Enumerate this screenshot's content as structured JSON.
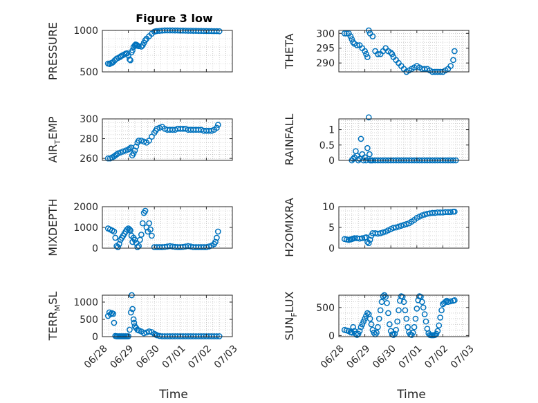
{
  "figure_title": "Figure 3 low",
  "chart_data": [
    {
      "type": "scatter",
      "ylabel": "PRESSURE",
      "ylim": [
        500,
        1000
      ],
      "yticks": [
        500,
        1000
      ],
      "xlim": [
        0,
        5
      ],
      "x": [
        0.22,
        0.28,
        0.33,
        0.38,
        0.42,
        0.48,
        0.55,
        0.62,
        0.68,
        0.72,
        0.78,
        0.84,
        0.9,
        0.95,
        1.0,
        1.05,
        1.08,
        1.12,
        1.16,
        1.2,
        1.25,
        1.28,
        1.32,
        1.35,
        1.4,
        1.5,
        1.55,
        1.6,
        1.65,
        1.7,
        1.8,
        1.9,
        2.0,
        2.05,
        2.1,
        2.2,
        2.3,
        2.4,
        2.5,
        2.6,
        2.7,
        2.8,
        2.9,
        3.0,
        3.1,
        3.2,
        3.3,
        3.4,
        3.5,
        3.6,
        3.7,
        3.8,
        3.9,
        4.0,
        4.1,
        4.2,
        4.3,
        4.4,
        4.5
      ],
      "y": [
        600,
        595,
        605,
        610,
        620,
        640,
        660,
        670,
        680,
        690,
        700,
        710,
        720,
        725,
        700,
        650,
        640,
        735,
        760,
        800,
        820,
        830,
        825,
        815,
        810,
        805,
        820,
        850,
        880,
        900,
        930,
        960,
        985,
        990,
        992,
        995,
        998,
        1000,
        1000,
        1000,
        1000,
        999,
        999,
        998,
        998,
        997,
        996,
        996,
        995,
        995,
        994,
        994,
        993,
        993,
        992,
        992,
        991,
        991,
        990
      ]
    },
    {
      "type": "scatter",
      "ylabel": "THETA",
      "ylim": [
        287,
        301
      ],
      "yticks": [
        290,
        295,
        300
      ],
      "xlim": [
        0,
        5
      ],
      "x": [
        0.22,
        0.3,
        0.38,
        0.45,
        0.5,
        0.55,
        0.6,
        0.7,
        0.8,
        0.9,
        1.0,
        1.05,
        1.1,
        1.15,
        1.2,
        1.3,
        1.4,
        1.5,
        1.6,
        1.7,
        1.8,
        1.9,
        2.0,
        2.05,
        2.1,
        2.2,
        2.3,
        2.4,
        2.5,
        2.6,
        2.7,
        2.8,
        2.9,
        3.0,
        3.1,
        3.2,
        3.3,
        3.4,
        3.5,
        3.6,
        3.7,
        3.8,
        3.9,
        4.0,
        4.1,
        4.2,
        4.3,
        4.4,
        4.45
      ],
      "y": [
        300,
        300,
        300,
        299,
        298,
        297,
        296.5,
        296,
        296,
        295,
        294,
        293,
        292,
        301,
        300,
        299,
        294,
        293,
        293,
        294,
        295,
        294,
        293.5,
        293,
        292,
        291,
        290,
        289,
        288,
        287,
        287.5,
        288,
        288.5,
        289,
        288.5,
        288,
        288,
        288,
        287.5,
        287,
        287,
        287,
        287,
        287,
        287.5,
        288,
        289,
        291,
        294
      ]
    },
    {
      "type": "scatter",
      "ylabel": "AIR_TEMP",
      "ylim": [
        258,
        300
      ],
      "yticks": [
        260,
        280,
        300
      ],
      "xlim": [
        0,
        5
      ],
      "x": [
        0.22,
        0.3,
        0.38,
        0.45,
        0.5,
        0.55,
        0.6,
        0.7,
        0.8,
        0.9,
        1.0,
        1.05,
        1.1,
        1.15,
        1.2,
        1.25,
        1.3,
        1.35,
        1.4,
        1.5,
        1.6,
        1.7,
        1.8,
        1.9,
        2.0,
        2.05,
        2.1,
        2.2,
        2.3,
        2.4,
        2.5,
        2.6,
        2.7,
        2.8,
        2.9,
        3.0,
        3.1,
        3.2,
        3.3,
        3.4,
        3.5,
        3.6,
        3.7,
        3.8,
        3.9,
        4.0,
        4.1,
        4.2,
        4.3,
        4.4,
        4.45
      ],
      "y": [
        260,
        260,
        261,
        262,
        263,
        264,
        265,
        266,
        267,
        268,
        269,
        270,
        271,
        263,
        265,
        268,
        272,
        276,
        278,
        278,
        277,
        276,
        278,
        282,
        286,
        288,
        290,
        291,
        292,
        290,
        289,
        289,
        289,
        289,
        290,
        290,
        290,
        290,
        289,
        289,
        289,
        289,
        289,
        289,
        288,
        288,
        288,
        288,
        289,
        291,
        294
      ]
    },
    {
      "type": "scatter",
      "ylabel": "RAINFALL",
      "ylim": [
        0,
        1.35
      ],
      "yticks": [
        0,
        0.5,
        1
      ],
      "xlim": [
        0,
        5
      ],
      "x": [
        0.5,
        0.55,
        0.6,
        0.65,
        0.7,
        0.75,
        0.8,
        0.85,
        0.9,
        0.95,
        1.0,
        1.05,
        1.1,
        1.15,
        1.18,
        1.2,
        1.25,
        1.3,
        1.4,
        1.5,
        1.6,
        1.7,
        1.8,
        1.9,
        2.0,
        2.1,
        2.2,
        2.3,
        2.4,
        2.5,
        2.6,
        2.7,
        2.8,
        2.9,
        3.0,
        3.1,
        3.2,
        3.3,
        3.4,
        3.5,
        3.6,
        3.7,
        3.8,
        3.9,
        4.0,
        4.1,
        4.2,
        4.3,
        4.4,
        4.5
      ],
      "y": [
        0,
        0.05,
        0.1,
        0.3,
        0.15,
        0,
        0.05,
        0.7,
        0.2,
        0,
        0.1,
        0,
        0.4,
        1.4,
        0.2,
        0,
        0,
        0,
        0,
        0,
        0,
        0,
        0,
        0,
        0,
        0,
        0,
        0,
        0,
        0,
        0,
        0,
        0,
        0,
        0,
        0,
        0,
        0,
        0,
        0,
        0,
        0,
        0,
        0,
        0,
        0,
        0,
        0,
        0,
        0
      ]
    },
    {
      "type": "scatter",
      "ylabel": "MIXDEPTH",
      "ylim": [
        0,
        2000
      ],
      "yticks": [
        0,
        1000,
        2000
      ],
      "xlim": [
        0,
        5
      ],
      "x": [
        0.22,
        0.3,
        0.38,
        0.45,
        0.5,
        0.55,
        0.6,
        0.65,
        0.7,
        0.75,
        0.8,
        0.85,
        0.9,
        0.95,
        1.0,
        1.05,
        1.08,
        1.12,
        1.16,
        1.2,
        1.25,
        1.3,
        1.35,
        1.4,
        1.45,
        1.5,
        1.55,
        1.6,
        1.65,
        1.7,
        1.75,
        1.8,
        1.85,
        1.9,
        2.0,
        2.1,
        2.2,
        2.3,
        2.4,
        2.5,
        2.6,
        2.7,
        2.8,
        2.9,
        3.0,
        3.1,
        3.2,
        3.3,
        3.4,
        3.5,
        3.6,
        3.7,
        3.8,
        3.9,
        4.0,
        4.1,
        4.2,
        4.3,
        4.35,
        4.4,
        4.45
      ],
      "y": [
        950,
        900,
        850,
        800,
        500,
        100,
        50,
        200,
        400,
        500,
        600,
        700,
        800,
        900,
        950,
        900,
        850,
        600,
        300,
        500,
        400,
        250,
        50,
        100,
        400,
        650,
        1200,
        1700,
        1800,
        1000,
        800,
        1200,
        900,
        600,
        50,
        50,
        50,
        50,
        60,
        80,
        100,
        80,
        60,
        50,
        50,
        60,
        80,
        100,
        80,
        50,
        50,
        50,
        50,
        50,
        50,
        80,
        120,
        200,
        300,
        500,
        800
      ]
    },
    {
      "type": "scatter",
      "ylabel": "H2OMIXRA",
      "ylim": [
        0,
        10
      ],
      "yticks": [
        0,
        5,
        10
      ],
      "xlim": [
        0,
        5
      ],
      "x": [
        0.22,
        0.3,
        0.38,
        0.45,
        0.5,
        0.55,
        0.6,
        0.7,
        0.8,
        0.9,
        1.0,
        1.05,
        1.1,
        1.15,
        1.2,
        1.25,
        1.3,
        1.4,
        1.5,
        1.6,
        1.7,
        1.8,
        1.9,
        2.0,
        2.1,
        2.2,
        2.3,
        2.4,
        2.5,
        2.6,
        2.7,
        2.8,
        2.9,
        3.0,
        3.1,
        3.2,
        3.3,
        3.4,
        3.5,
        3.6,
        3.7,
        3.8,
        3.9,
        4.0,
        4.1,
        4.2,
        4.3,
        4.4,
        4.45
      ],
      "y": [
        2.2,
        2.1,
        2.0,
        2.1,
        2.2,
        2.3,
        2.4,
        2.4,
        2.3,
        2.4,
        2.5,
        2.6,
        1.5,
        1.2,
        2.0,
        3.0,
        3.6,
        3.6,
        3.5,
        3.6,
        3.8,
        4.0,
        4.3,
        4.6,
        4.9,
        5.0,
        5.2,
        5.4,
        5.6,
        5.8,
        6.0,
        6.4,
        6.8,
        7.3,
        7.6,
        7.9,
        8.1,
        8.3,
        8.4,
        8.5,
        8.5,
        8.6,
        8.6,
        8.6,
        8.7,
        8.7,
        8.7,
        8.8,
        8.8
      ]
    },
    {
      "type": "scatter",
      "ylabel": "TERR_MSL",
      "ylim": [
        0,
        1200
      ],
      "yticks": [
        0,
        500,
        1000
      ],
      "xlim": [
        0,
        5
      ],
      "x": [
        0.22,
        0.27,
        0.32,
        0.37,
        0.42,
        0.45,
        0.5,
        0.55,
        0.6,
        0.65,
        0.7,
        0.75,
        0.8,
        0.85,
        0.9,
        0.95,
        1.0,
        1.05,
        1.1,
        1.13,
        1.16,
        1.2,
        1.22,
        1.25,
        1.3,
        1.35,
        1.4,
        1.5,
        1.6,
        1.7,
        1.8,
        1.9,
        2.0,
        2.05,
        2.1,
        2.2,
        2.3,
        2.4,
        2.5,
        2.6,
        2.7,
        2.8,
        2.9,
        3.0,
        3.1,
        3.2,
        3.3,
        3.4,
        3.5,
        3.6,
        3.7,
        3.8,
        3.9,
        4.0,
        4.1,
        4.2,
        4.3,
        4.4,
        4.5
      ],
      "y": [
        600,
        700,
        650,
        680,
        660,
        400,
        20,
        10,
        10,
        10,
        10,
        10,
        10,
        10,
        10,
        10,
        10,
        200,
        700,
        1200,
        800,
        500,
        400,
        300,
        250,
        200,
        180,
        150,
        100,
        120,
        150,
        130,
        80,
        60,
        40,
        20,
        10,
        10,
        10,
        10,
        10,
        10,
        10,
        10,
        10,
        10,
        10,
        10,
        10,
        10,
        10,
        10,
        10,
        10,
        10,
        10,
        10,
        10,
        10
      ]
    },
    {
      "type": "scatter",
      "ylabel": "SUN_FLUX",
      "ylim": [
        -20,
        720
      ],
      "yticks": [
        0,
        500
      ],
      "xlim": [
        0,
        5
      ],
      "x": [
        0.22,
        0.3,
        0.38,
        0.45,
        0.5,
        0.55,
        0.6,
        0.65,
        0.7,
        0.75,
        0.8,
        0.85,
        0.9,
        0.95,
        1.0,
        1.05,
        1.1,
        1.15,
        1.2,
        1.25,
        1.3,
        1.35,
        1.4,
        1.45,
        1.5,
        1.55,
        1.6,
        1.65,
        1.7,
        1.75,
        1.8,
        1.85,
        1.9,
        1.95,
        2.0,
        2.05,
        2.1,
        2.15,
        2.2,
        2.25,
        2.3,
        2.35,
        2.4,
        2.45,
        2.5,
        2.55,
        2.6,
        2.65,
        2.7,
        2.75,
        2.8,
        2.85,
        2.9,
        2.95,
        3.0,
        3.05,
        3.1,
        3.15,
        3.2,
        3.25,
        3.3,
        3.35,
        3.4,
        3.45,
        3.5,
        3.55,
        3.6,
        3.65,
        3.7,
        3.75,
        3.8,
        3.85,
        3.9,
        3.95,
        4.0,
        4.05,
        4.1,
        4.15,
        4.2,
        4.3,
        4.4,
        4.45
      ],
      "y": [
        100,
        90,
        80,
        60,
        50,
        150,
        80,
        30,
        10,
        30,
        80,
        150,
        200,
        250,
        300,
        350,
        400,
        380,
        300,
        200,
        100,
        50,
        20,
        50,
        150,
        300,
        450,
        600,
        700,
        720,
        690,
        580,
        400,
        200,
        80,
        20,
        10,
        30,
        100,
        250,
        450,
        620,
        700,
        690,
        600,
        450,
        300,
        150,
        60,
        20,
        10,
        50,
        150,
        300,
        480,
        630,
        700,
        690,
        600,
        500,
        380,
        250,
        120,
        40,
        10,
        5,
        5,
        5,
        10,
        30,
        80,
        180,
        320,
        450,
        560,
        580,
        600,
        620,
        600,
        610,
        620,
        630
      ]
    }
  ],
  "x_ticks": [
    "06/28",
    "06/29",
    "06/30",
    "07/01",
    "07/02",
    "07/03"
  ],
  "x_label": "Time",
  "colors": {
    "marker": "#0072BD",
    "axis": "#262626"
  }
}
